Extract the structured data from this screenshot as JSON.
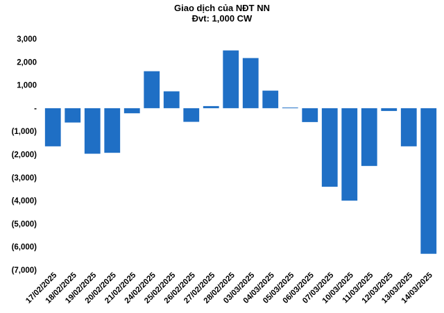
{
  "chart_data": {
    "type": "bar",
    "title": "Giao dịch của NĐT NN",
    "subtitle": "Đvt: 1,000 CW",
    "xlabel": "",
    "ylabel": "",
    "ylim": [
      -7000,
      3000
    ],
    "yticks": [
      3000,
      2000,
      1000,
      0,
      -1000,
      -2000,
      -3000,
      -4000,
      -5000,
      -6000,
      -7000
    ],
    "ytick_labels": [
      "3,000",
      "2,000",
      "1,000",
      "-",
      "(1,000)",
      "(2,000)",
      "(3,000)",
      "(4,000)",
      "(5,000)",
      "(6,000)",
      "(7,000)"
    ],
    "grid": false,
    "legend": "none",
    "bar_color": "#1F6FC5",
    "categories": [
      "17/02/2025",
      "18/02/2025",
      "19/02/2025",
      "20/02/2025",
      "21/02/2025",
      "24/02/2025",
      "25/02/2025",
      "26/02/2025",
      "27/02/2025",
      "28/02/2025",
      "03/03/2025",
      "04/03/2025",
      "05/03/2025",
      "06/03/2025",
      "07/03/2025",
      "10/03/2025",
      "11/03/2025",
      "12/03/2025",
      "13/03/2025",
      "14/03/2025"
    ],
    "values": [
      -1650,
      -620,
      -1970,
      -1930,
      -220,
      1600,
      730,
      -590,
      90,
      2500,
      2170,
      760,
      30,
      -600,
      -3400,
      -4000,
      -2500,
      -120,
      -1650,
      -6300
    ]
  }
}
